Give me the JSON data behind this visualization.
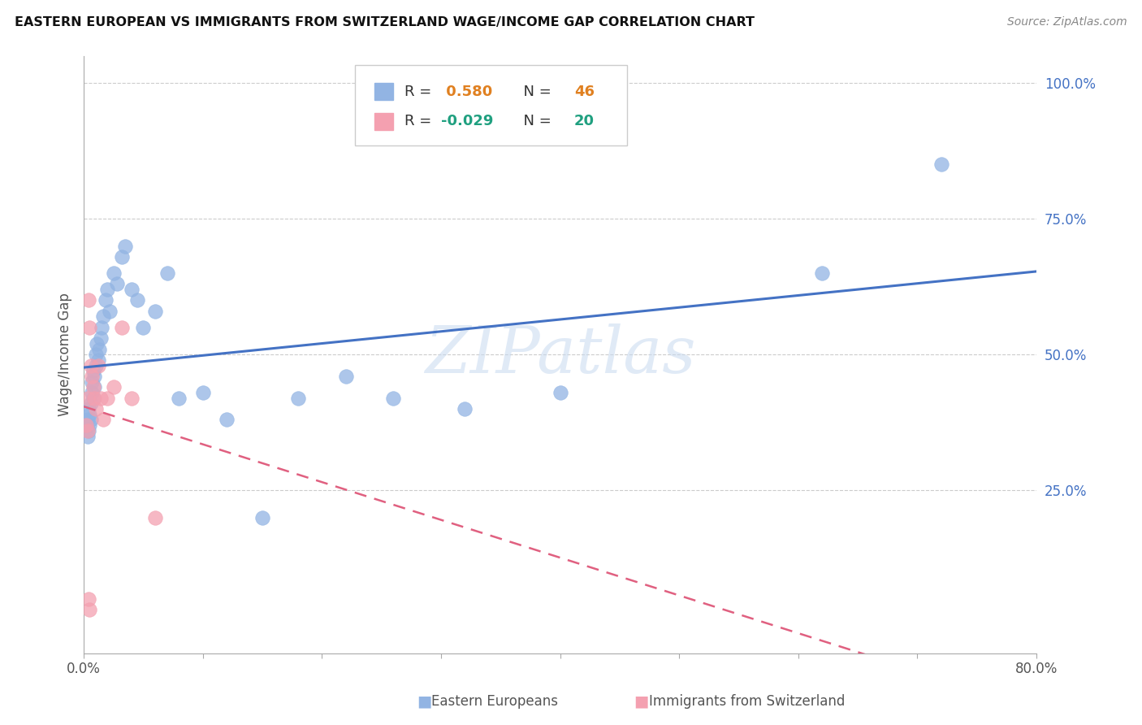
{
  "title": "EASTERN EUROPEAN VS IMMIGRANTS FROM SWITZERLAND WAGE/INCOME GAP CORRELATION CHART",
  "source": "Source: ZipAtlas.com",
  "ylabel": "Wage/Income Gap",
  "right_yticks": [
    "100.0%",
    "75.0%",
    "50.0%",
    "25.0%"
  ],
  "right_ytick_vals": [
    1.0,
    0.75,
    0.5,
    0.25
  ],
  "watermark": "ZIPatlas",
  "legend1_label": "Eastern Europeans",
  "legend2_label": "Immigrants from Switzerland",
  "R1": 0.58,
  "N1": 46,
  "R2": -0.029,
  "N2": 20,
  "blue_color": "#92B4E3",
  "pink_color": "#F4A0B0",
  "blue_line_color": "#4472C4",
  "pink_line_color": "#E06080",
  "blue_scatter_x": [
    0.002,
    0.003,
    0.003,
    0.004,
    0.004,
    0.005,
    0.005,
    0.006,
    0.006,
    0.007,
    0.007,
    0.008,
    0.008,
    0.009,
    0.009,
    0.01,
    0.01,
    0.011,
    0.012,
    0.013,
    0.014,
    0.015,
    0.016,
    0.018,
    0.02,
    0.022,
    0.025,
    0.028,
    0.032,
    0.035,
    0.04,
    0.045,
    0.05,
    0.06,
    0.07,
    0.08,
    0.1,
    0.12,
    0.15,
    0.18,
    0.22,
    0.26,
    0.32,
    0.4,
    0.62,
    0.72
  ],
  "blue_scatter_y": [
    0.37,
    0.35,
    0.38,
    0.36,
    0.4,
    0.37,
    0.39,
    0.41,
    0.38,
    0.43,
    0.45,
    0.42,
    0.47,
    0.44,
    0.46,
    0.48,
    0.5,
    0.52,
    0.49,
    0.51,
    0.53,
    0.55,
    0.57,
    0.6,
    0.62,
    0.58,
    0.65,
    0.63,
    0.68,
    0.7,
    0.62,
    0.6,
    0.55,
    0.58,
    0.65,
    0.42,
    0.43,
    0.38,
    0.2,
    0.42,
    0.46,
    0.42,
    0.4,
    0.43,
    0.65,
    0.85
  ],
  "pink_scatter_x": [
    0.002,
    0.003,
    0.003,
    0.004,
    0.005,
    0.006,
    0.007,
    0.008,
    0.009,
    0.01,
    0.012,
    0.014,
    0.016,
    0.02,
    0.025,
    0.032,
    0.04,
    0.06,
    0.004,
    0.005
  ],
  "pink_scatter_y": [
    0.37,
    0.36,
    0.42,
    0.6,
    0.55,
    0.48,
    0.46,
    0.44,
    0.42,
    0.4,
    0.48,
    0.42,
    0.38,
    0.42,
    0.44,
    0.55,
    0.42,
    0.2,
    0.05,
    0.03
  ],
  "xlim": [
    0.0,
    0.8
  ],
  "ylim": [
    -0.05,
    1.05
  ],
  "xtick_positions": [
    0.0,
    0.1,
    0.2,
    0.3,
    0.4,
    0.5,
    0.6,
    0.7,
    0.8
  ],
  "xtick_labels": [
    "0.0%",
    "",
    "",
    "",
    "",
    "",
    "",
    "",
    "80.0%"
  ]
}
